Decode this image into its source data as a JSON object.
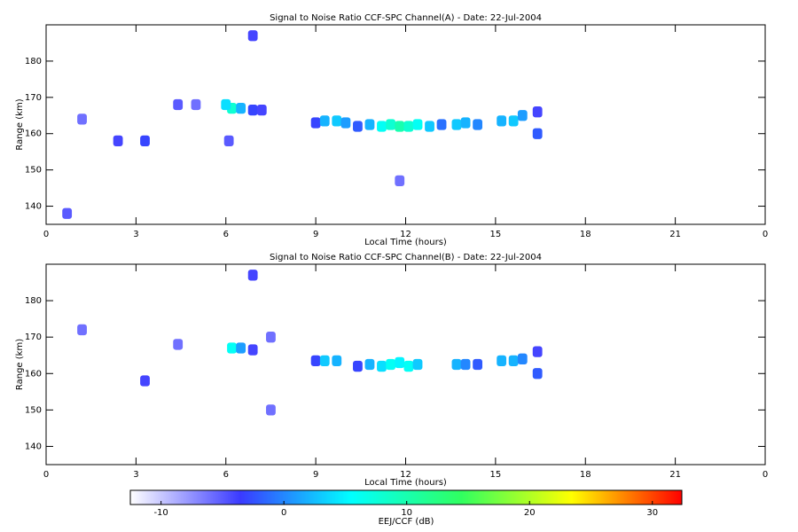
{
  "chart_data": [
    {
      "type": "heatmap",
      "title": "Signal to Noise Ratio CCF-SPC Channel(A) - Date: 22-Jul-2004",
      "xlabel": "Local Time (hours)",
      "ylabel": "Range (km)",
      "xlim": [
        0,
        24
      ],
      "xticks": [
        0,
        3,
        6,
        9,
        12,
        15,
        18,
        21,
        {
          "value": 24,
          "label": "0"
        }
      ],
      "ylim": [
        135,
        190
      ],
      "yticks": [
        140,
        150,
        160,
        170,
        180
      ],
      "x": [
        6.2,
        6.0,
        6.5,
        6.9,
        7.2,
        9.0,
        9.3,
        9.7,
        10.0,
        10.4,
        10.8,
        11.2,
        11.5,
        11.8,
        12.1,
        12.4,
        12.8,
        13.2,
        13.7,
        14.0,
        14.4,
        15.2,
        15.6,
        15.9,
        16.4,
        16.4,
        0.7,
        3.3,
        2.4,
        6.9,
        5.0,
        1.2,
        4.4,
        6.1,
        11.8
      ],
      "y": [
        167,
        168,
        167,
        166.5,
        166.5,
        163,
        163.5,
        163.5,
        163,
        162,
        162.5,
        162,
        162.5,
        162,
        162,
        162.5,
        162,
        162.5,
        162.5,
        163,
        162.5,
        163.5,
        163.5,
        165,
        160,
        166,
        138,
        158,
        158,
        187,
        168,
        164,
        168,
        158,
        147
      ],
      "values": [
        8,
        4,
        2,
        -3,
        -4,
        -3,
        2,
        3,
        1,
        -2,
        2,
        6,
        8,
        10,
        8,
        6,
        3,
        -1,
        3,
        2,
        0,
        2,
        3,
        1,
        -2,
        -4,
        -5,
        -3,
        -4,
        -4,
        -6,
        -6,
        -5,
        -5,
        -6
      ]
    },
    {
      "type": "heatmap",
      "title": "Signal to Noise Ratio CCF-SPC Channel(B) - Date: 22-Jul-2004",
      "xlabel": "Local Time (hours)",
      "ylabel": "Range (km)",
      "xlim": [
        0,
        24
      ],
      "xticks": [
        0,
        3,
        6,
        9,
        12,
        15,
        18,
        21,
        {
          "value": 24,
          "label": "0"
        }
      ],
      "ylim": [
        135,
        190
      ],
      "yticks": [
        140,
        150,
        160,
        170,
        180
      ],
      "x": [
        6.2,
        6.5,
        6.9,
        9.0,
        9.3,
        9.7,
        10.4,
        10.8,
        11.2,
        11.5,
        11.8,
        12.1,
        12.4,
        13.7,
        14.0,
        14.4,
        15.2,
        15.6,
        15.9,
        16.4,
        16.4,
        7.5,
        7.5,
        6.9,
        3.3,
        4.4,
        1.2
      ],
      "y": [
        167,
        167,
        166.5,
        163.5,
        163.5,
        163.5,
        162,
        162.5,
        162,
        162.5,
        163,
        162,
        162.5,
        162.5,
        162.5,
        162.5,
        163.5,
        163.5,
        164,
        160,
        166,
        150,
        170,
        187,
        158,
        168,
        172
      ],
      "values": [
        6,
        1,
        -4,
        -3,
        3,
        2,
        -3,
        2,
        4,
        6,
        5,
        6,
        3,
        2,
        0,
        -2,
        2,
        2,
        0,
        -2,
        -4,
        -6,
        -6,
        -4,
        -4,
        -6,
        -6
      ]
    },
    {
      "type": "colorbar",
      "xlabel": "EEJ/CCF (dB)",
      "xlim": [
        -12.5,
        32.4
      ],
      "xticks": [
        -10,
        0,
        10,
        20,
        30
      ],
      "colormap": [
        "#ffffff",
        "#3a3aff",
        "#00ffff",
        "#30ff60",
        "#ffff00",
        "#ff0000"
      ]
    }
  ]
}
